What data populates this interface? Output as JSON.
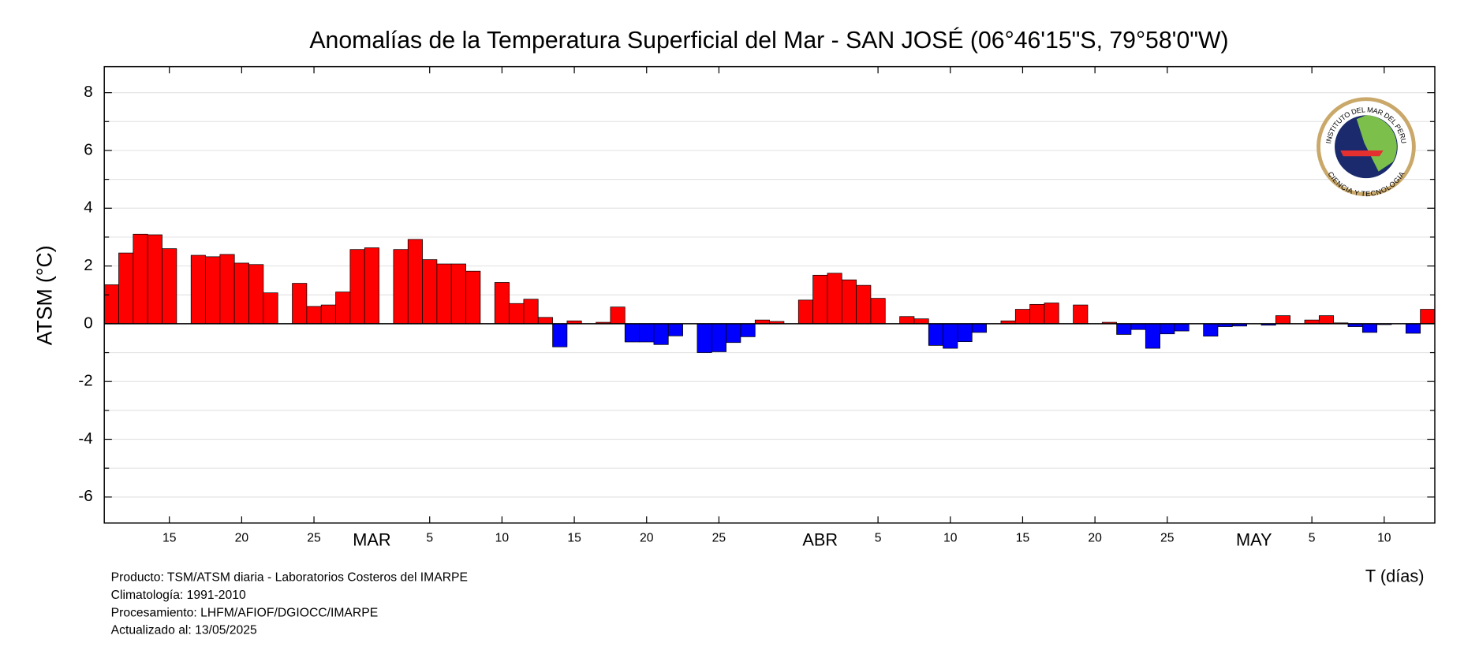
{
  "chart_data": {
    "type": "bar",
    "title": "Anomalías de la Temperatura Superficial del Mar - SAN JOSÉ (06°46'15\"S, 79°58'0\"W)",
    "y_label": "ATSM (°C)",
    "x_label": "T (días)",
    "categories": [
      null,
      null,
      null,
      null,
      "15",
      null,
      null,
      null,
      null,
      "20",
      null,
      null,
      null,
      null,
      "25",
      null,
      null,
      null,
      "MAR",
      null,
      null,
      null,
      "5",
      null,
      null,
      null,
      null,
      "10",
      null,
      null,
      null,
      null,
      "15",
      null,
      null,
      null,
      null,
      "20",
      null,
      null,
      null,
      null,
      "25",
      null,
      null,
      null,
      null,
      null,
      null,
      "ABR",
      null,
      null,
      null,
      "5",
      null,
      null,
      null,
      null,
      "10",
      null,
      null,
      null,
      null,
      "15",
      null,
      null,
      null,
      null,
      "20",
      null,
      null,
      null,
      null,
      "25",
      null,
      null,
      null,
      null,
      null,
      "MAY",
      null,
      null,
      null,
      "5",
      null,
      null,
      null,
      null,
      "10",
      null,
      null,
      null
    ],
    "month_labels": [
      "MAR",
      "ABR",
      "MAY"
    ],
    "values": [
      1.35,
      2.45,
      3.1,
      3.08,
      2.6,
      null,
      2.37,
      2.32,
      2.4,
      2.1,
      2.05,
      1.07,
      null,
      1.4,
      0.6,
      0.65,
      1.1,
      2.57,
      2.63,
      null,
      2.57,
      2.92,
      2.22,
      2.07,
      2.07,
      1.82,
      null,
      1.43,
      0.7,
      0.85,
      0.22,
      -0.8,
      0.1,
      null,
      0.05,
      0.58,
      -0.63,
      -0.63,
      -0.72,
      -0.42,
      null,
      -1.0,
      -0.97,
      -0.65,
      -0.45,
      0.13,
      0.08,
      null,
      0.82,
      1.68,
      1.75,
      1.52,
      1.33,
      0.88,
      null,
      0.25,
      0.17,
      -0.75,
      -0.85,
      -0.62,
      -0.3,
      null,
      0.1,
      0.5,
      0.67,
      0.72,
      null,
      0.65,
      null,
      0.05,
      -0.37,
      -0.2,
      -0.85,
      -0.35,
      -0.25,
      null,
      -0.43,
      -0.1,
      -0.08,
      null,
      -0.05,
      0.28,
      null,
      0.13,
      0.28,
      0.03,
      -0.1,
      -0.3,
      -0.03,
      null,
      -0.33,
      0.5
    ],
    "positive_color": "#ff0000",
    "negative_color": "#0000ff",
    "ylim": [
      -6.9,
      8.9
    ],
    "yticks": [
      -6,
      -4,
      -2,
      0,
      2,
      4,
      6,
      8
    ],
    "minor_yticks": [
      -5,
      -3,
      -1,
      1,
      3,
      5,
      7
    ],
    "grid": true,
    "footer": [
      "Producto: TSM/ATSM diaria - Laboratorios Costeros del IMARPE",
      "Climatología: 1991-2010",
      "Procesamiento: LHFM/AFIOF/DGIOCC/IMARPE",
      "Actualizado al: 13/05/2025"
    ],
    "logo": {
      "top_text": "INSTITUTO DEL MAR DEL PERU",
      "bottom_text": "CIENCIA Y TECNOLOGIA"
    }
  }
}
